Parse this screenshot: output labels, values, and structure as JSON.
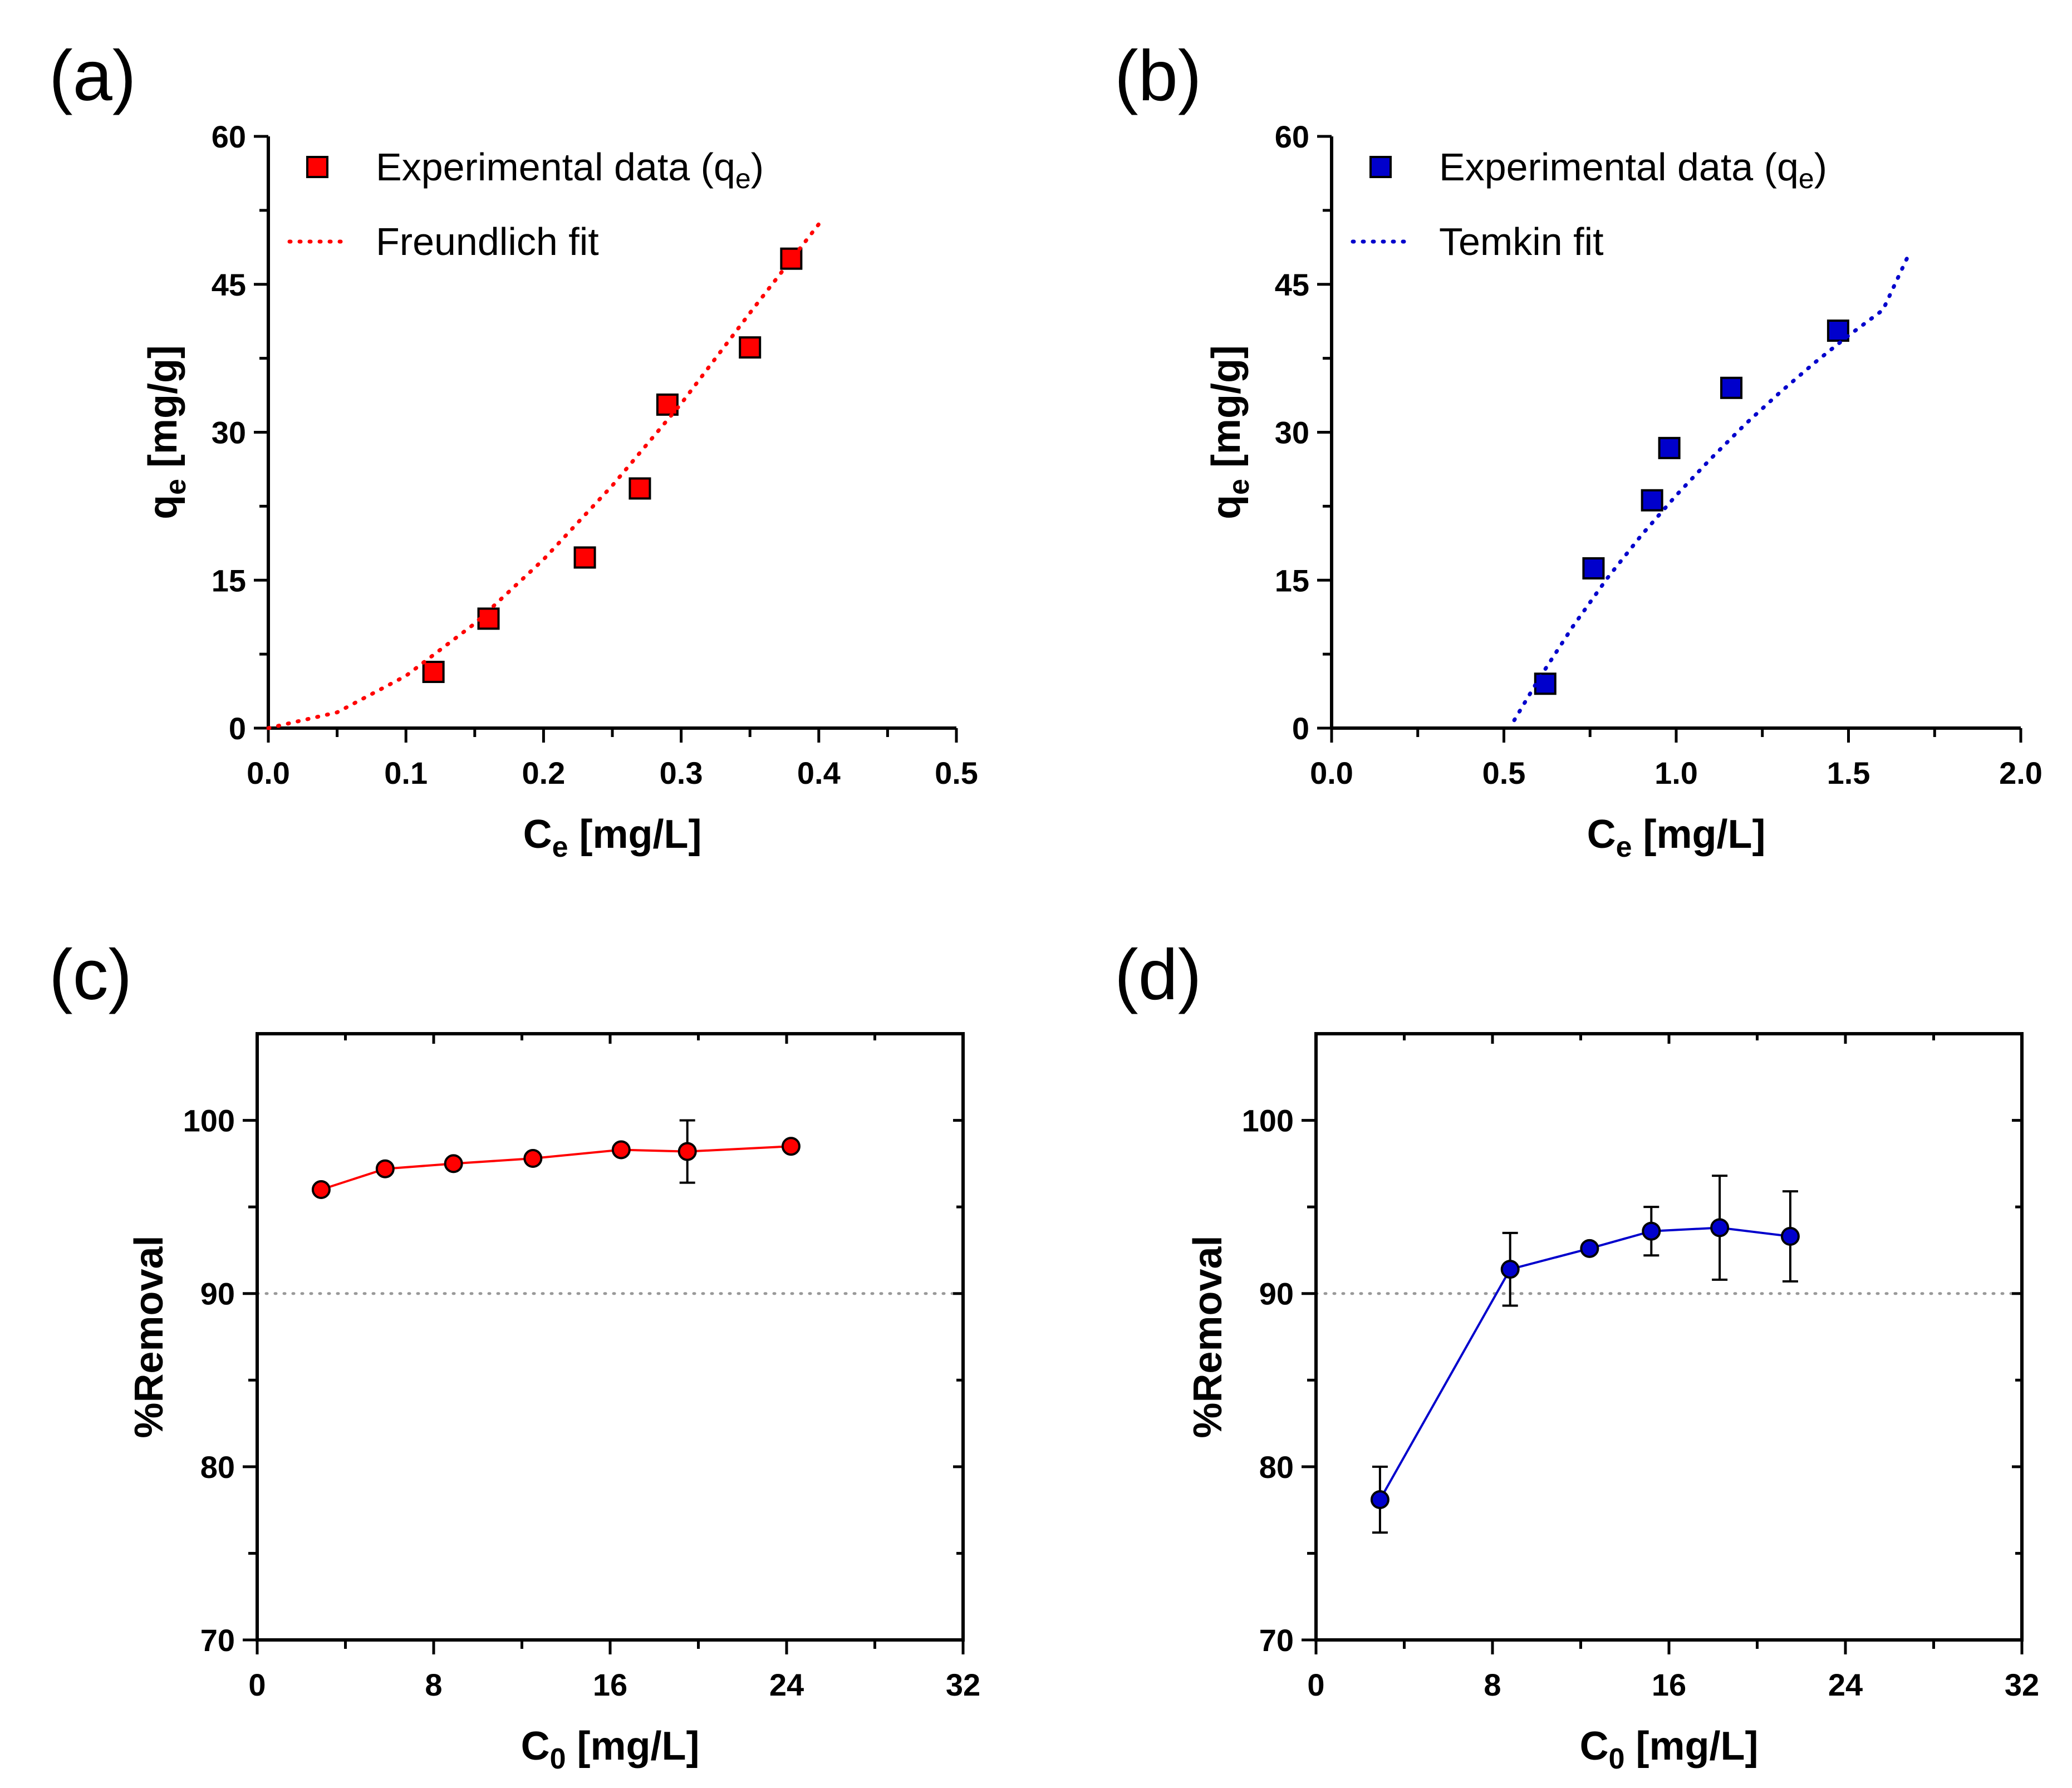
{
  "colors": {
    "red": "#ff0000",
    "blue": "#0000cc",
    "reference_line": "#999999",
    "axis": "#000000"
  },
  "chart_data": [
    {
      "panel": "(a)",
      "type": "scatter",
      "xlabel": "C",
      "xlabel_sub": "e",
      "xlabel_unit": " [mg/L]",
      "ylabel": "q",
      "ylabel_sub": "e",
      "ylabel_unit": " [mg/g]",
      "xlim": [
        0,
        0.5
      ],
      "ylim": [
        0,
        60
      ],
      "xticks": [
        0,
        0.1,
        0.2,
        0.3,
        0.4,
        0.5
      ],
      "xtick_labels": [
        "0.0",
        "0.1",
        "0.2",
        "0.3",
        "0.4",
        "0.5"
      ],
      "yticks": [
        0,
        15,
        30,
        45,
        60
      ],
      "ytick_labels": [
        "0",
        "15",
        "30",
        "45",
        "60"
      ],
      "legend_position": "top-left",
      "series": [
        {
          "name": "Experimental data (q",
          "name_sub": "e",
          "name_end": ")",
          "kind": "points",
          "marker": "square",
          "color": "#ff0000",
          "x": [
            0.12,
            0.16,
            0.23,
            0.27,
            0.29,
            0.35,
            0.38
          ],
          "y": [
            5.7,
            11.1,
            17.3,
            24.3,
            32.8,
            38.6,
            47.6
          ]
        },
        {
          "name": "Freundlich fit",
          "kind": "fit",
          "style": "dotted",
          "color": "#ff0000",
          "x": [
            0.0,
            0.05,
            0.1,
            0.15,
            0.2,
            0.25,
            0.3,
            0.35,
            0.4
          ],
          "y": [
            0.0,
            1.6,
            5.3,
            10.6,
            17.1,
            24.6,
            32.9,
            42.1,
            51.1
          ]
        }
      ]
    },
    {
      "panel": "(b)",
      "type": "scatter",
      "xlabel": "C",
      "xlabel_sub": "e",
      "xlabel_unit": " [mg/L]",
      "ylabel": "q",
      "ylabel_sub": "e",
      "ylabel_unit": " [mg/g]",
      "xlim": [
        0,
        2.0
      ],
      "ylim": [
        0,
        60
      ],
      "xticks": [
        0,
        0.5,
        1.0,
        1.5,
        2.0
      ],
      "xtick_labels": [
        "0.0",
        "0.5",
        "1.0",
        "1.5",
        "2.0"
      ],
      "yticks": [
        0,
        15,
        30,
        45,
        60
      ],
      "ytick_labels": [
        "0",
        "15",
        "30",
        "45",
        "60"
      ],
      "legend_position": "top-left",
      "series": [
        {
          "name": "Experimental data (q",
          "name_sub": "e",
          "name_end": ")",
          "kind": "points",
          "marker": "square",
          "color": "#0000cc",
          "x": [
            0.62,
            0.76,
            0.93,
            0.98,
            1.16,
            1.47
          ],
          "y": [
            4.5,
            16.2,
            23.1,
            28.4,
            34.5,
            40.3
          ]
        },
        {
          "name": "Temkin fit",
          "kind": "fit",
          "style": "dotted",
          "color": "#0000cc",
          "x": [
            0.53,
            0.6,
            0.7,
            0.8,
            0.9,
            1.0,
            1.1,
            1.2,
            1.3,
            1.4,
            1.5,
            1.6,
            1.68
          ],
          "y": [
            0.8,
            4.9,
            10.3,
            15.2,
            19.6,
            23.6,
            27.3,
            30.8,
            34.0,
            37.0,
            39.8,
            42.4,
            48.4
          ]
        }
      ]
    },
    {
      "panel": "(c)",
      "type": "line",
      "xlabel": "C",
      "xlabel_sub": "0",
      "xlabel_unit": " [mg/L]",
      "ylabel": "%Removal",
      "xlim": [
        0,
        32
      ],
      "ylim": [
        70,
        105
      ],
      "xticks": [
        0,
        8,
        16,
        24,
        32
      ],
      "xtick_labels": [
        "0",
        "8",
        "16",
        "24",
        "32"
      ],
      "yticks": [
        70,
        80,
        90,
        100
      ],
      "ytick_labels": [
        "70",
        "80",
        "90",
        "100"
      ],
      "reference_line": 90,
      "series": [
        {
          "name": "%Removal",
          "color": "#ff0000",
          "marker": "circle",
          "x": [
            2.9,
            5.8,
            8.9,
            12.5,
            16.5,
            19.5,
            24.2
          ],
          "y": [
            96.0,
            97.2,
            97.5,
            97.8,
            98.3,
            98.2,
            98.5
          ],
          "err": [
            0,
            0,
            0,
            0,
            0,
            1.8,
            0
          ]
        }
      ]
    },
    {
      "panel": "(d)",
      "type": "line",
      "xlabel": "C",
      "xlabel_sub": "0",
      "xlabel_unit": " [mg/L]",
      "ylabel": "%Removal",
      "xlim": [
        0,
        32
      ],
      "ylim": [
        70,
        105
      ],
      "xticks": [
        0,
        8,
        16,
        24,
        32
      ],
      "xtick_labels": [
        "0",
        "8",
        "16",
        "24",
        "32"
      ],
      "yticks": [
        70,
        80,
        90,
        100
      ],
      "ytick_labels": [
        "70",
        "80",
        "90",
        "100"
      ],
      "reference_line": 90,
      "series": [
        {
          "name": "%Removal",
          "color": "#0000cc",
          "marker": "circle",
          "x": [
            2.9,
            8.8,
            12.4,
            15.2,
            18.3,
            21.5
          ],
          "y": [
            78.1,
            91.4,
            92.6,
            93.6,
            93.8,
            93.3
          ],
          "err": [
            1.9,
            2.1,
            0,
            1.4,
            3.0,
            2.6
          ]
        }
      ]
    }
  ]
}
